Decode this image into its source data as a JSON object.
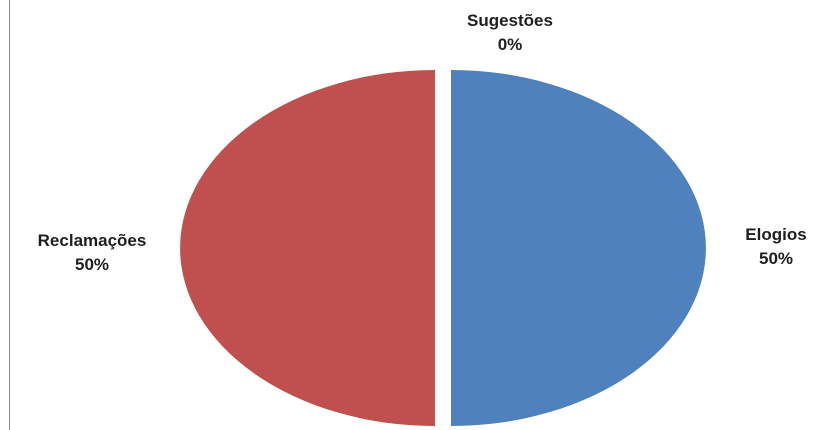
{
  "chart_data": {
    "type": "pie",
    "title": "",
    "slices": [
      {
        "label": "Elogios",
        "value": 50,
        "percent_label": "50%",
        "color": "#4f81bd"
      },
      {
        "label": "Sugestões",
        "value": 0,
        "percent_label": "0%",
        "color": "#9bbb59"
      },
      {
        "label": "Reclamações",
        "value": 50,
        "percent_label": "50%",
        "color": "#c0504d"
      }
    ],
    "exploded": true,
    "label_position": "outside"
  }
}
